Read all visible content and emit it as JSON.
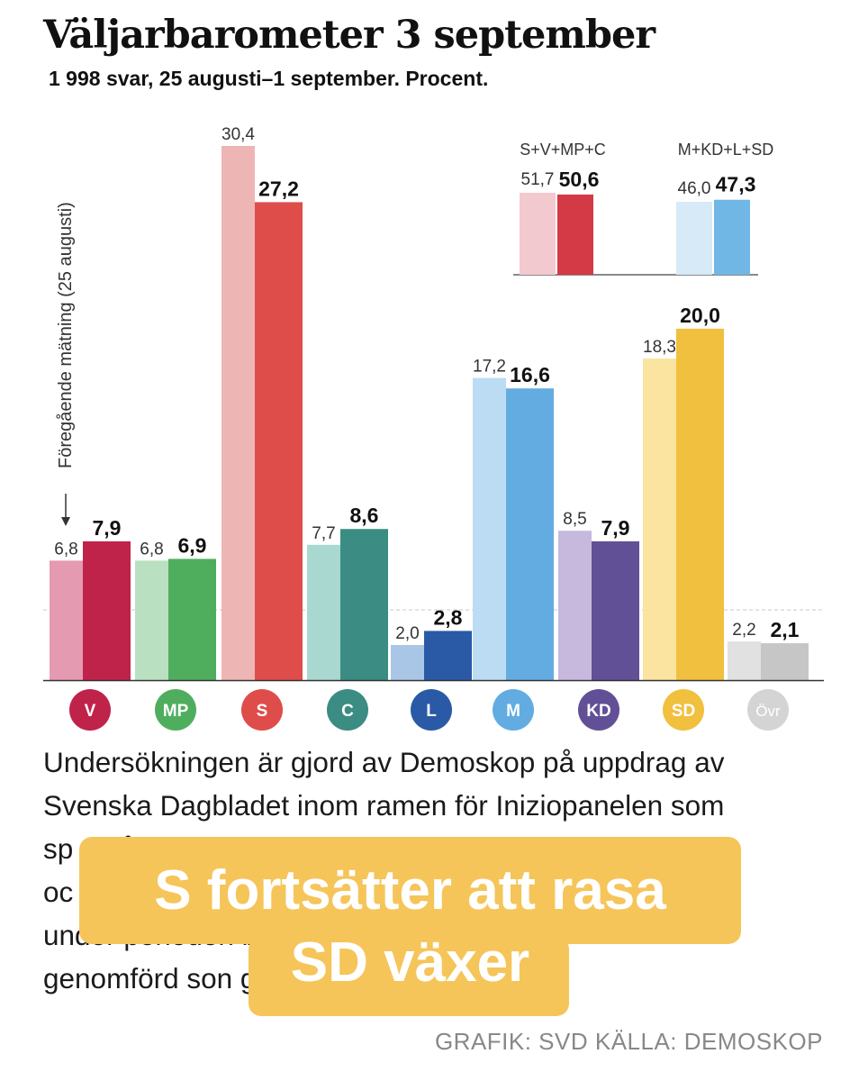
{
  "title": "Väljarbarometer 3 september",
  "subtitle": "1 998 svar, 25 augusti–1 september. Procent.",
  "chart_data": {
    "type": "bar",
    "categories": [
      "V",
      "MP",
      "S",
      "C",
      "L",
      "M",
      "KD",
      "SD",
      "Övr"
    ],
    "series": [
      {
        "name": "Föregående mätning (25 augusti)",
        "values": [
          6.8,
          6.8,
          30.4,
          7.7,
          2.0,
          17.2,
          8.5,
          18.3,
          2.2
        ]
      },
      {
        "name": "",
        "values": [
          7.9,
          6.9,
          27.2,
          8.6,
          2.8,
          16.6,
          7.9,
          20.0,
          2.1
        ]
      }
    ],
    "labels_previous": [
      "6,8",
      "6,8",
      "30,4",
      "7,7",
      "2,0",
      "17,2",
      "8,5",
      "18,3",
      "2,2"
    ],
    "labels_current": [
      "7,9",
      "6,9",
      "27,2",
      "8,6",
      "2,8",
      "16,6",
      "7,9",
      "20,0",
      "2,1"
    ],
    "colors_previous": [
      "#e49ab0",
      "#b9e0c0",
      "#eeb5b5",
      "#a8d8d0",
      "#a9c6e6",
      "#bcdcf3",
      "#c6b9dd",
      "#fbe3a0",
      "#e1e1e1"
    ],
    "colors_current": [
      "#c0234a",
      "#4fae5e",
      "#df4d4b",
      "#3b8c82",
      "#2a5aa6",
      "#62ace2",
      "#625097",
      "#f0c03e",
      "#c6c6c6"
    ],
    "badge_colors": [
      "#c0234a",
      "#4fae5e",
      "#df4d4b",
      "#3b8c82",
      "#2a5aa6",
      "#62ace2",
      "#625097",
      "#f0c03e",
      "#d4d4d4"
    ],
    "previous_label": "Föregående mätning (25 augusti)",
    "threshold": 4,
    "ylim": [
      0,
      32
    ],
    "blocks": [
      {
        "name": "S+V+MP+C",
        "previous": 51.7,
        "current": 50.6,
        "label_previous": "51,7",
        "label_current": "50,6",
        "color_previous": "#f2c9cf",
        "color_current": "#d33a45"
      },
      {
        "name": "M+KD+L+SD",
        "previous": 46.0,
        "current": 47.3,
        "label_previous": "46,0",
        "label_current": "47,3",
        "color_previous": "#d6eaf8",
        "color_current": "#71b7e6"
      }
    ]
  },
  "body_text": "Undersökningen är gjord av Demoskop på uppdrag av Svenska Dagbladet inom ramen för Iniziopanelen som sp 18 år oc er under perioden bel, och är genomförd son g.",
  "body_lines": [
    "Undersökningen är gjord av Demoskop på uppdrag av",
    "Svenska Dagbladet inom ramen för Iniziopanelen som",
    "sp                                                                                  18 år",
    "oc                                                                                  er",
    "under perioden                                            bel, och är",
    "genomförd son                                   g."
  ],
  "overlay": {
    "line1": "S fortsätter att rasa",
    "line2": "SD växer",
    "color": "#f5c55a"
  },
  "credit": "GRAFIK: SVD KÄLLA: DEMOSKOP"
}
